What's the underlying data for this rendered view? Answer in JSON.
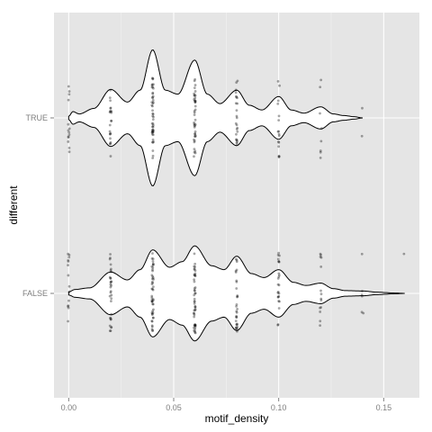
{
  "chart_data": {
    "type": "violin",
    "title": "",
    "xlabel": "motif_density",
    "ylabel": "different",
    "xlim": [
      -0.007,
      0.167
    ],
    "x_ticks": [
      0.0,
      0.05,
      0.1,
      0.15
    ],
    "x_tick_labels": [
      "0.00",
      "0.05",
      "0.10",
      "0.15"
    ],
    "categories": [
      "FALSE",
      "TRUE"
    ],
    "grid": true,
    "legend": "none",
    "colors": {
      "panel": "#e5e5e5",
      "grid_major": "#ffffff",
      "grid_minor": "#f2f2f2",
      "violin_fill": "#ffffff",
      "violin_line": "#000000",
      "points": "#000000"
    },
    "series": [
      {
        "name": "TRUE",
        "density_profile": [
          [
            0.0,
            0.02
          ],
          [
            0.002,
            0.08
          ],
          [
            0.005,
            0.05
          ],
          [
            0.012,
            0.12
          ],
          [
            0.02,
            0.36
          ],
          [
            0.028,
            0.2
          ],
          [
            0.034,
            0.35
          ],
          [
            0.04,
            0.86
          ],
          [
            0.046,
            0.35
          ],
          [
            0.052,
            0.3
          ],
          [
            0.06,
            0.73
          ],
          [
            0.066,
            0.3
          ],
          [
            0.072,
            0.18
          ],
          [
            0.08,
            0.35
          ],
          [
            0.086,
            0.16
          ],
          [
            0.092,
            0.1
          ],
          [
            0.1,
            0.27
          ],
          [
            0.106,
            0.1
          ],
          [
            0.112,
            0.06
          ],
          [
            0.12,
            0.14
          ],
          [
            0.126,
            0.05
          ],
          [
            0.131,
            0.03
          ],
          [
            0.136,
            0.015
          ],
          [
            0.14,
            0.0
          ]
        ],
        "points": [
          {
            "x": 0.0,
            "n": 14
          },
          {
            "x": 0.02,
            "n": 22
          },
          {
            "x": 0.04,
            "n": 48
          },
          {
            "x": 0.06,
            "n": 42
          },
          {
            "x": 0.08,
            "n": 24
          },
          {
            "x": 0.1,
            "n": 16
          },
          {
            "x": 0.12,
            "n": 8
          },
          {
            "x": 0.14,
            "n": 2
          }
        ]
      },
      {
        "name": "FALSE",
        "density_profile": [
          [
            0.0,
            0.02
          ],
          [
            0.003,
            0.05
          ],
          [
            0.01,
            0.07
          ],
          [
            0.02,
            0.27
          ],
          [
            0.028,
            0.17
          ],
          [
            0.034,
            0.3
          ],
          [
            0.04,
            0.55
          ],
          [
            0.048,
            0.33
          ],
          [
            0.054,
            0.4
          ],
          [
            0.06,
            0.6
          ],
          [
            0.068,
            0.35
          ],
          [
            0.074,
            0.3
          ],
          [
            0.08,
            0.47
          ],
          [
            0.087,
            0.25
          ],
          [
            0.093,
            0.2
          ],
          [
            0.1,
            0.3
          ],
          [
            0.107,
            0.14
          ],
          [
            0.113,
            0.1
          ],
          [
            0.12,
            0.13
          ],
          [
            0.126,
            0.06
          ],
          [
            0.132,
            0.035
          ],
          [
            0.14,
            0.03
          ],
          [
            0.147,
            0.015
          ],
          [
            0.155,
            0.005
          ],
          [
            0.16,
            0.0
          ]
        ],
        "points": [
          {
            "x": 0.0,
            "n": 14
          },
          {
            "x": 0.02,
            "n": 32
          },
          {
            "x": 0.04,
            "n": 48
          },
          {
            "x": 0.06,
            "n": 48
          },
          {
            "x": 0.08,
            "n": 30
          },
          {
            "x": 0.1,
            "n": 24
          },
          {
            "x": 0.12,
            "n": 14
          },
          {
            "x": 0.14,
            "n": 6
          },
          {
            "x": 0.16,
            "n": 1
          }
        ]
      }
    ]
  }
}
